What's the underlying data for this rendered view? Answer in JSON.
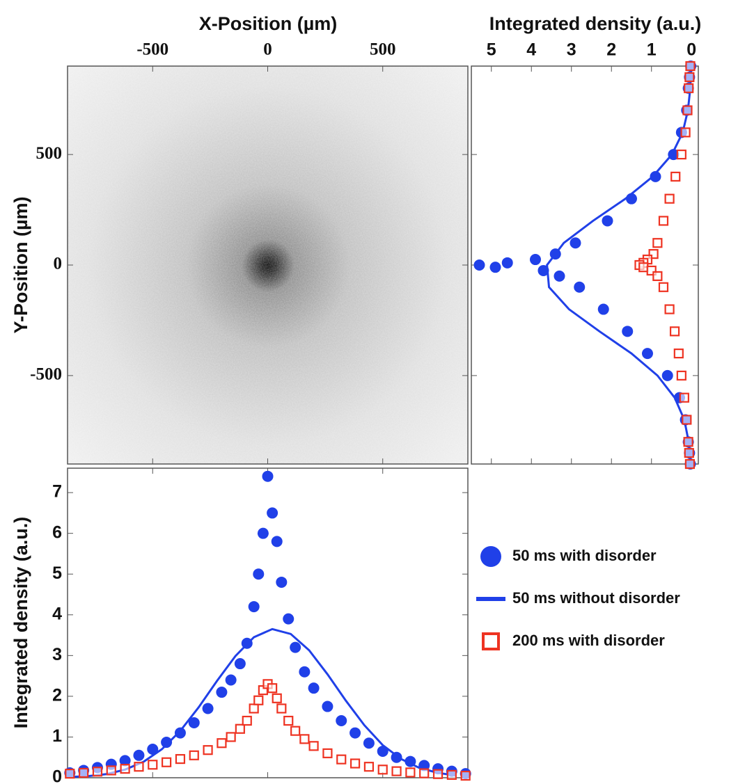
{
  "chart_data": [
    {
      "type": "image",
      "xlabel": "X-Position (µm)",
      "ylabel": "Y-Position (µm)",
      "xlim": [
        -870,
        870
      ],
      "ylim": [
        -900,
        900
      ],
      "xticks": [
        -500,
        0,
        500
      ],
      "yticks": [
        -500,
        0,
        500
      ]
    },
    {
      "type": "profile_y",
      "xlabel": "Integrated density (a.u.)",
      "xlim": [
        5.5,
        -0.17
      ],
      "ylim": [
        -900,
        900
      ],
      "xticks": [
        5,
        4,
        3,
        2,
        1,
        0
      ],
      "yticks": [
        -500,
        0,
        500
      ],
      "series": [
        {
          "marker": "circle",
          "color": "#2040e8",
          "y": [
            900,
            850,
            800,
            700,
            600,
            500,
            400,
            300,
            200,
            100,
            50,
            25,
            10,
            0,
            -10,
            -25,
            -50,
            -100,
            -200,
            -300,
            -400,
            -500,
            -600,
            -700,
            -800,
            -850,
            -900
          ],
          "values": [
            0.02,
            0.05,
            0.08,
            0.12,
            0.25,
            0.45,
            0.9,
            1.5,
            2.1,
            2.9,
            3.4,
            3.9,
            4.6,
            5.3,
            4.9,
            3.7,
            3.3,
            2.8,
            2.2,
            1.6,
            1.1,
            0.6,
            0.3,
            0.15,
            0.08,
            0.05,
            0.03
          ]
        },
        {
          "marker": "line",
          "color": "#2040e8",
          "y": [
            900,
            800,
            700,
            600,
            500,
            400,
            300,
            200,
            100,
            0,
            -100,
            -200,
            -300,
            -400,
            -500,
            -600,
            -700,
            -800,
            -900
          ],
          "values": [
            0.01,
            0.03,
            0.09,
            0.22,
            0.49,
            0.97,
            1.65,
            2.46,
            3.19,
            3.61,
            3.56,
            3.06,
            2.3,
            1.5,
            0.85,
            0.42,
            0.18,
            0.07,
            0.02
          ]
        },
        {
          "marker": "square",
          "color": "#ee3322",
          "y": [
            900,
            850,
            800,
            700,
            600,
            500,
            400,
            300,
            200,
            100,
            50,
            25,
            10,
            0,
            -10,
            -25,
            -50,
            -100,
            -200,
            -300,
            -400,
            -500,
            -600,
            -700,
            -800,
            -850,
            -900
          ],
          "values": [
            0.03,
            0.05,
            0.07,
            0.1,
            0.15,
            0.25,
            0.4,
            0.55,
            0.7,
            0.85,
            0.95,
            1.1,
            1.2,
            1.3,
            1.2,
            1.0,
            0.85,
            0.7,
            0.55,
            0.42,
            0.32,
            0.25,
            0.18,
            0.12,
            0.08,
            0.06,
            0.04
          ]
        }
      ]
    },
    {
      "type": "profile_x",
      "ylabel": "Integrated density (a.u.)",
      "xlim": [
        -870,
        870
      ],
      "ylim": [
        0,
        7.6
      ],
      "xticks": [
        -500,
        0,
        500
      ],
      "yticks": [
        0,
        1,
        2,
        3,
        4,
        5,
        6,
        7
      ],
      "series": [
        {
          "name": "50 ms with disorder",
          "marker": "circle",
          "color": "#2040e8",
          "x": [
            -860,
            -800,
            -740,
            -680,
            -620,
            -560,
            -500,
            -440,
            -380,
            -320,
            -260,
            -200,
            -160,
            -120,
            -90,
            -60,
            -40,
            -20,
            0,
            20,
            40,
            60,
            90,
            120,
            160,
            200,
            260,
            320,
            380,
            440,
            500,
            560,
            620,
            680,
            740,
            800,
            860
          ],
          "values": [
            0.12,
            0.18,
            0.25,
            0.33,
            0.42,
            0.55,
            0.7,
            0.87,
            1.1,
            1.35,
            1.7,
            2.1,
            2.4,
            2.8,
            3.3,
            4.2,
            5.0,
            6.0,
            7.4,
            6.5,
            5.8,
            4.8,
            3.9,
            3.2,
            2.6,
            2.2,
            1.75,
            1.4,
            1.1,
            0.85,
            0.65,
            0.5,
            0.4,
            0.3,
            0.22,
            0.16,
            0.1
          ]
        },
        {
          "name": "50 ms without disorder",
          "marker": "line",
          "color": "#2040e8",
          "x": [
            -860,
            -780,
            -700,
            -620,
            -540,
            -460,
            -380,
            -300,
            -220,
            -140,
            -60,
            20,
            100,
            180,
            260,
            340,
            420,
            500,
            580,
            660,
            740,
            820
          ],
          "values": [
            0.02,
            0.04,
            0.09,
            0.2,
            0.39,
            0.7,
            1.15,
            1.73,
            2.38,
            2.99,
            3.45,
            3.65,
            3.53,
            3.13,
            2.54,
            1.89,
            1.29,
            0.8,
            0.46,
            0.24,
            0.12,
            0.05
          ]
        },
        {
          "name": "200 ms with disorder",
          "marker": "square",
          "color": "#ee3322",
          "x": [
            -860,
            -800,
            -740,
            -680,
            -620,
            -560,
            -500,
            -440,
            -380,
            -320,
            -260,
            -200,
            -160,
            -120,
            -90,
            -60,
            -40,
            -20,
            0,
            20,
            40,
            60,
            90,
            120,
            160,
            200,
            260,
            320,
            380,
            440,
            500,
            560,
            620,
            680,
            740,
            800,
            860
          ],
          "values": [
            0.1,
            0.12,
            0.15,
            0.18,
            0.22,
            0.27,
            0.32,
            0.38,
            0.46,
            0.55,
            0.68,
            0.85,
            1.0,
            1.2,
            1.4,
            1.7,
            1.9,
            2.15,
            2.3,
            2.2,
            1.95,
            1.7,
            1.4,
            1.15,
            0.95,
            0.78,
            0.6,
            0.45,
            0.35,
            0.27,
            0.2,
            0.16,
            0.13,
            0.11,
            0.09,
            0.07,
            0.05
          ]
        }
      ]
    }
  ]
}
